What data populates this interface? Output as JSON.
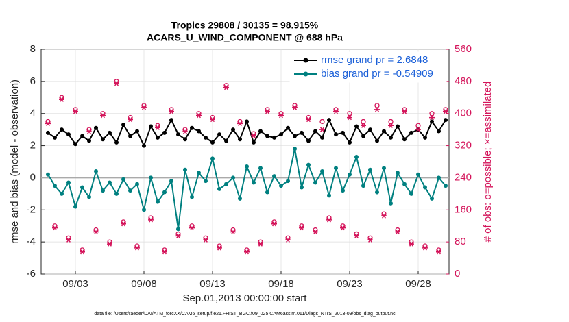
{
  "chart_data": {
    "type": "line",
    "title": "Tropics 29808 / 30135 = 98.915%",
    "subtitle": "ACARS_U_WIND_COMPONENT @ 688 hPa",
    "x_label": "Sep.01,2013 00:00:00 start",
    "y_label": "rmse and bias (model - observation)",
    "y2_label": "# of obs: o=possible; ×=assimilated",
    "footnote": "data file: /Users/raeder/DAI/ATM_forcXX/CAM6_setup/f.e21.FHIST_BGC.f09_025.CAM6assim.011/Diags_NTrS_2013-09/obs_diag_output.nc",
    "xlim": [
      -0.5,
      29.25
    ],
    "xticks": [
      {
        "value": 2,
        "label": "09/03"
      },
      {
        "value": 7,
        "label": "09/08"
      },
      {
        "value": 12,
        "label": "09/13"
      },
      {
        "value": 17,
        "label": "09/18"
      },
      {
        "value": 22,
        "label": "09/23"
      },
      {
        "value": 27,
        "label": "09/28"
      }
    ],
    "ylim": [
      -6,
      8
    ],
    "yticks": [
      -6,
      -4,
      -2,
      0,
      2,
      4,
      6,
      8
    ],
    "y2lim": [
      0,
      560
    ],
    "y2ticks": [
      0,
      80,
      160,
      240,
      320,
      400,
      480,
      560
    ],
    "grid": true,
    "legend": "upper right",
    "x": [
      0,
      0.5,
      1,
      1.5,
      2,
      2.5,
      3,
      3.5,
      4,
      4.5,
      5,
      5.5,
      6,
      6.5,
      7,
      7.5,
      8,
      8.5,
      9,
      9.5,
      10,
      10.5,
      11,
      11.5,
      12,
      12.5,
      13,
      13.5,
      14,
      14.5,
      15,
      15.5,
      16,
      16.5,
      17,
      17.5,
      18,
      18.5,
      19,
      19.5,
      20,
      20.5,
      21,
      21.5,
      22,
      22.5,
      23,
      23.5,
      24,
      24.5,
      25,
      25.5,
      26,
      26.5,
      27,
      27.5,
      28,
      28.5,
      29
    ],
    "series": [
      {
        "name": "rmse grand pr = 2.6848",
        "color": "#000000",
        "marker": "dot",
        "values": [
          2.8,
          2.5,
          3.0,
          2.7,
          2.1,
          2.6,
          2.3,
          3.1,
          2.4,
          2.8,
          2.2,
          3.3,
          2.6,
          2.9,
          2.0,
          3.2,
          2.5,
          2.8,
          3.6,
          2.7,
          2.4,
          3.1,
          2.9,
          2.5,
          2.2,
          2.7,
          2.3,
          3.0,
          2.4,
          3.5,
          2.2,
          2.9,
          2.6,
          2.5,
          2.7,
          3.1,
          2.6,
          2.8,
          2.3,
          2.9,
          2.5,
          3.6,
          2.7,
          2.8,
          2.2,
          3.2,
          2.6,
          3.0,
          2.3,
          2.9,
          2.5,
          3.2,
          2.4,
          2.8,
          3.0,
          2.5,
          3.5,
          2.9,
          3.6
        ]
      },
      {
        "name": "bias grand pr = -0.54909",
        "color": "#008080",
        "marker": "dot",
        "values": [
          0.2,
          -0.5,
          -1.0,
          -0.3,
          -1.8,
          -0.6,
          -1.2,
          0.4,
          -0.8,
          -0.3,
          -1.0,
          -0.1,
          -0.8,
          -0.4,
          -2.0,
          0.0,
          -1.5,
          -0.9,
          -0.2,
          -3.2,
          0.5,
          -1.2,
          0.3,
          -0.2,
          1.2,
          -0.7,
          -0.4,
          0.0,
          -1.3,
          0.7,
          -0.3,
          0.6,
          -0.9,
          0.1,
          -0.5,
          -0.2,
          1.8,
          -0.6,
          0.8,
          -0.3,
          0.4,
          -1.1,
          0.6,
          -0.8,
          0.2,
          1.3,
          -0.5,
          0.5,
          -0.9,
          0.6,
          -1.6,
          0.3,
          -0.4,
          -1.0,
          0.2,
          -0.6,
          -1.3,
          0.0,
          -0.5
        ]
      },
      {
        "color": "#d4145a",
        "axis": "y2",
        "marker": "circle",
        "values": [
          380,
          120,
          440,
          90,
          410,
          60,
          360,
          110,
          400,
          80,
          480,
          130,
          390,
          70,
          420,
          140,
          370,
          60,
          410,
          100,
          360,
          120,
          400,
          90,
          390,
          70,
          470,
          110,
          380,
          60,
          350,
          80,
          410,
          130,
          400,
          90,
          420,
          120,
          390,
          110,
          380,
          140,
          410,
          120,
          400,
          100,
          380,
          90,
          420,
          150,
          380,
          110,
          410,
          80,
          370,
          70,
          400,
          60,
          410
        ]
      },
      {
        "color": "#d4145a",
        "axis": "y2",
        "marker": "asterisk",
        "values": [
          375,
          115,
          435,
          85,
          405,
          55,
          355,
          105,
          395,
          75,
          475,
          125,
          385,
          65,
          415,
          135,
          365,
          55,
          405,
          95,
          355,
          115,
          395,
          85,
          385,
          65,
          465,
          105,
          375,
          55,
          345,
          75,
          405,
          125,
          395,
          85,
          415,
          115,
          385,
          105,
          360,
          135,
          405,
          115,
          390,
          95,
          370,
          85,
          410,
          145,
          370,
          105,
          405,
          75,
          360,
          65,
          390,
          55,
          405
        ]
      }
    ]
  }
}
